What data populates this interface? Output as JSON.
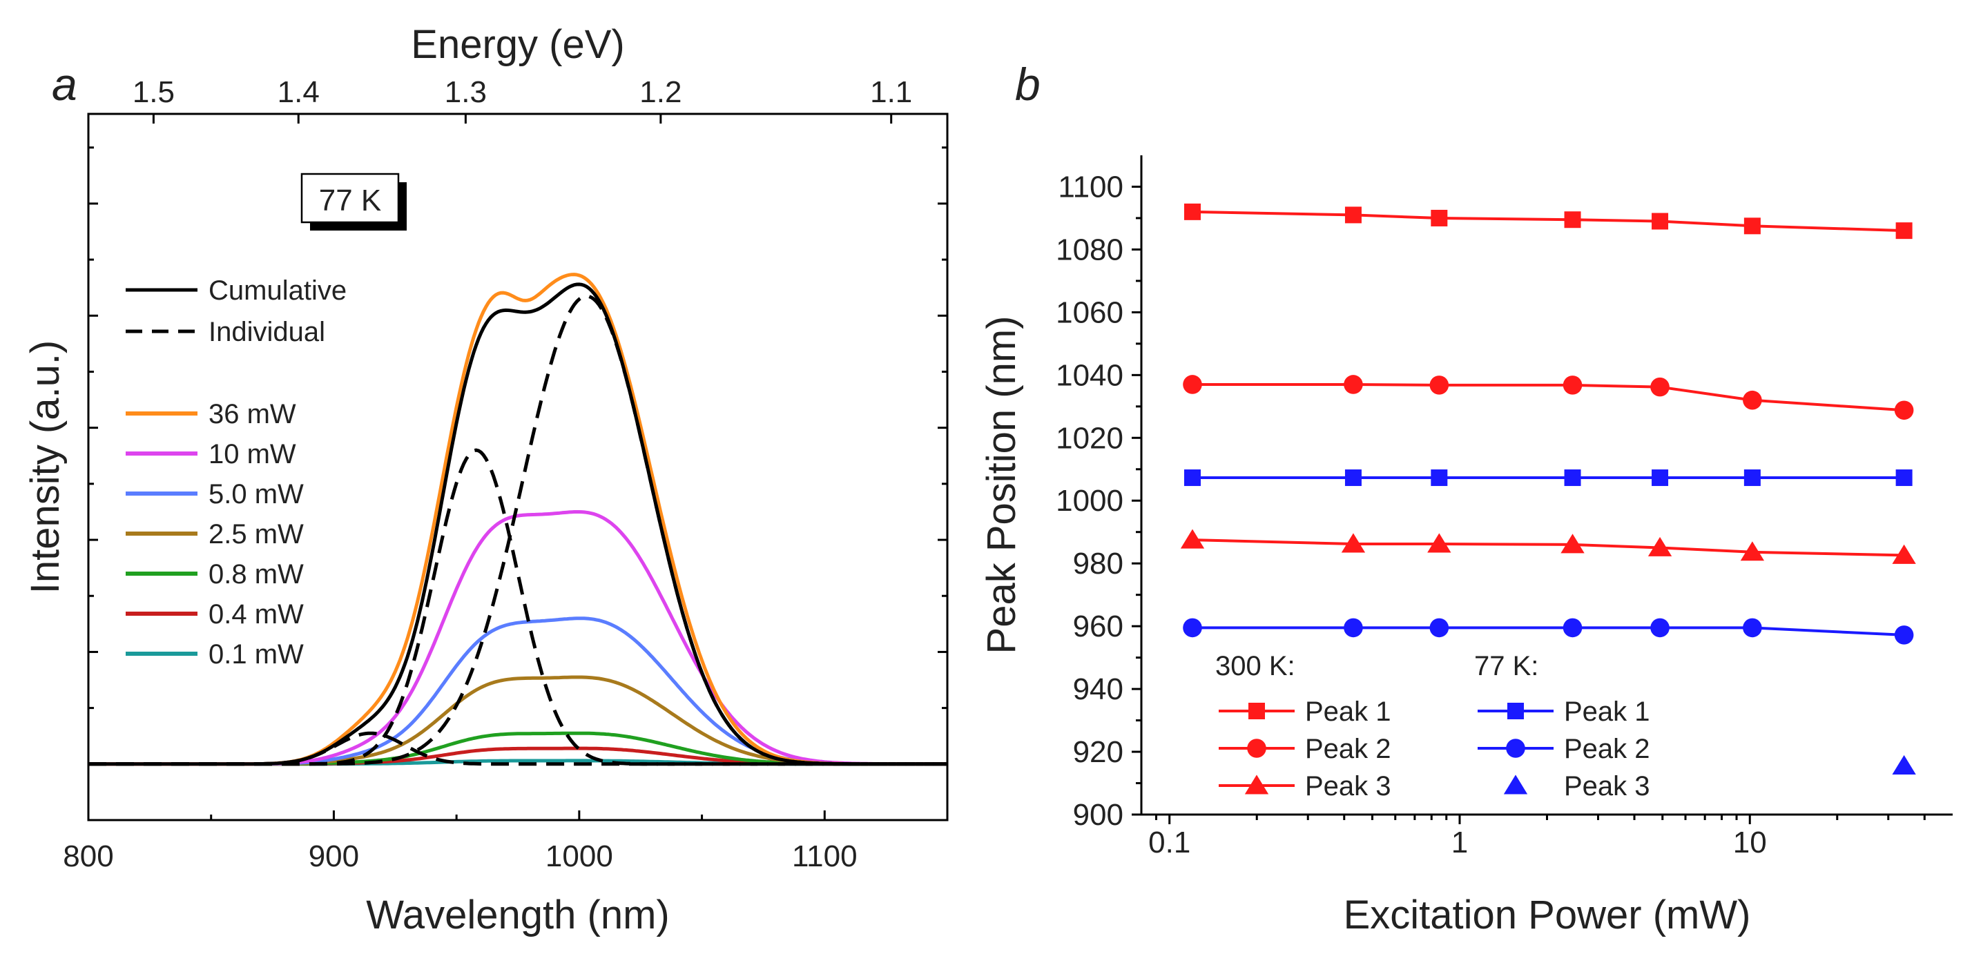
{
  "chart_data": [
    {
      "panel": "a",
      "type": "line",
      "xlabel": "Wavelength (nm)",
      "ylabel": "Intensity (a.u.)",
      "top_axis_label": "Energy (eV)",
      "xlim": [
        800,
        1150
      ],
      "ylim": [
        -0.1,
        1.16
      ],
      "x_ticks": [
        800,
        900,
        1000,
        1100
      ],
      "top_ticks": [
        1.5,
        1.4,
        1.3,
        1.2,
        1.1
      ],
      "temperature_label": "77 K",
      "style_legend": [
        {
          "label": "Cumulative",
          "style": "solid"
        },
        {
          "label": "Individual",
          "style": "dashed"
        }
      ],
      "series": [
        {
          "name": "36 mW",
          "color": "#ff8c1a",
          "amplitude": 1.0,
          "shoulder": 0.08
        },
        {
          "name": "10 mW",
          "color": "#dd44ee",
          "amplitude": 0.45,
          "shoulder": 0.25
        },
        {
          "name": "5.0 mW",
          "color": "#5a7dff",
          "amplitude": 0.26,
          "shoulder": 0.24
        },
        {
          "name": "2.5 mW",
          "color": "#a87a1c",
          "amplitude": 0.155,
          "shoulder": 0.25
        },
        {
          "name": "0.8 mW",
          "color": "#20a020",
          "amplitude": 0.055,
          "shoulder": 0.25
        },
        {
          "name": "0.4 mW",
          "color": "#c81e1e",
          "amplitude": 0.028,
          "shoulder": 0.25
        },
        {
          "name": "0.1 mW",
          "color": "#1a9a9a",
          "amplitude": 0.006,
          "shoulder": 0.25
        }
      ],
      "cumulative_peaks": [
        {
          "center": 1003,
          "height": 0.835,
          "width": 26
        },
        {
          "center": 958,
          "height": 0.56,
          "width": 17
        },
        {
          "center": 915,
          "height": 0.055,
          "width": 14
        }
      ],
      "individual_peaks": [
        {
          "center": 1003,
          "height": 0.835,
          "width": 26
        },
        {
          "center": 958,
          "height": 0.56,
          "width": 17
        },
        {
          "center": 915,
          "height": 0.055,
          "width": 14
        }
      ]
    },
    {
      "panel": "b",
      "type": "scatter",
      "xscale": "log",
      "xlabel": "Excitation Power (mW)",
      "ylabel": "Peak Position (nm)",
      "xlim": [
        0.08,
        50
      ],
      "ylim": [
        900,
        1110
      ],
      "x_ticks": [
        0.1,
        1,
        10
      ],
      "x_tick_labels": [
        "0.1",
        "1",
        "10"
      ],
      "y_ticks": [
        900,
        920,
        940,
        960,
        980,
        1000,
        1020,
        1040,
        1060,
        1080,
        1100
      ],
      "x": [
        0.12,
        0.43,
        0.85,
        2.45,
        4.9,
        10.2,
        34
      ],
      "legend_groups": [
        "300 K:",
        "77 K:"
      ],
      "series": [
        {
          "name": "Peak 1",
          "group": "300 K",
          "marker": "square",
          "color": "#ff1a1a",
          "values": [
            1092,
            1091,
            1090,
            1089.5,
            1089,
            1087.5,
            1086
          ]
        },
        {
          "name": "Peak 2",
          "group": "300 K",
          "marker": "circle",
          "color": "#ff1a1a",
          "values": [
            1037,
            1037,
            1036.8,
            1036.8,
            1036.2,
            1032,
            1028.8
          ]
        },
        {
          "name": "Peak 3",
          "group": "300 K",
          "marker": "triangle",
          "color": "#ff1a1a",
          "values": [
            987.5,
            986.2,
            986.2,
            986,
            985,
            983.6,
            982.6
          ]
        },
        {
          "name": "Peak 1",
          "group": "77 K",
          "marker": "square",
          "color": "#1a1aff",
          "values": [
            1007.3,
            1007.3,
            1007.3,
            1007.3,
            1007.3,
            1007.3,
            1007.3
          ]
        },
        {
          "name": "Peak 2",
          "group": "77 K",
          "marker": "circle",
          "color": "#1a1aff",
          "values": [
            959.5,
            959.5,
            959.5,
            959.5,
            959.5,
            959.5,
            957.2
          ]
        },
        {
          "name": "Peak 3",
          "group": "77 K",
          "marker": "triangle",
          "color": "#1a1aff",
          "values": [
            null,
            null,
            null,
            null,
            null,
            null,
            915.5
          ]
        }
      ]
    }
  ]
}
